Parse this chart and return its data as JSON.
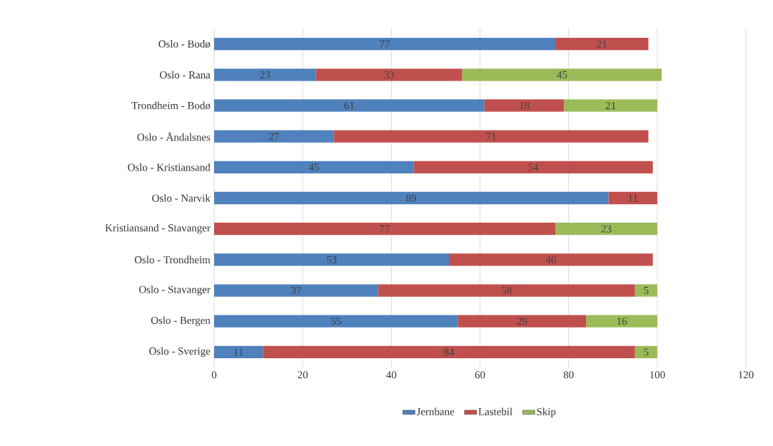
{
  "chart_data": {
    "type": "bar",
    "orientation": "horizontal",
    "stacked": true,
    "categories": [
      "Oslo - Bodø",
      "Oslo - Rana",
      "Trondheim - Bodø",
      "Oslo - Åndalsnes",
      "Oslo - Kristiansand",
      "Oslo - Narvik",
      "Kristiansand - Stavanger",
      "Oslo - Trondheim",
      "Oslo - Stavanger",
      "Oslo - Bergen",
      "Oslo - Sverige"
    ],
    "series": [
      {
        "name": "Jernbane",
        "color": "#4f81bd",
        "values": [
          77,
          23,
          61,
          27,
          45,
          89,
          null,
          53,
          37,
          55,
          11
        ]
      },
      {
        "name": "Lastebil",
        "color": "#c0504d",
        "values": [
          21,
          33,
          18,
          71,
          54,
          11,
          77,
          46,
          58,
          29,
          84
        ]
      },
      {
        "name": "Skip",
        "color": "#9bbb59",
        "values": [
          null,
          45,
          21,
          null,
          null,
          null,
          23,
          null,
          5,
          16,
          5
        ]
      }
    ],
    "xlim": [
      0,
      120
    ],
    "xticks": [
      0,
      20,
      40,
      60,
      80,
      100,
      120
    ],
    "grid": "x",
    "legend": "bottom",
    "data_labels": true
  }
}
